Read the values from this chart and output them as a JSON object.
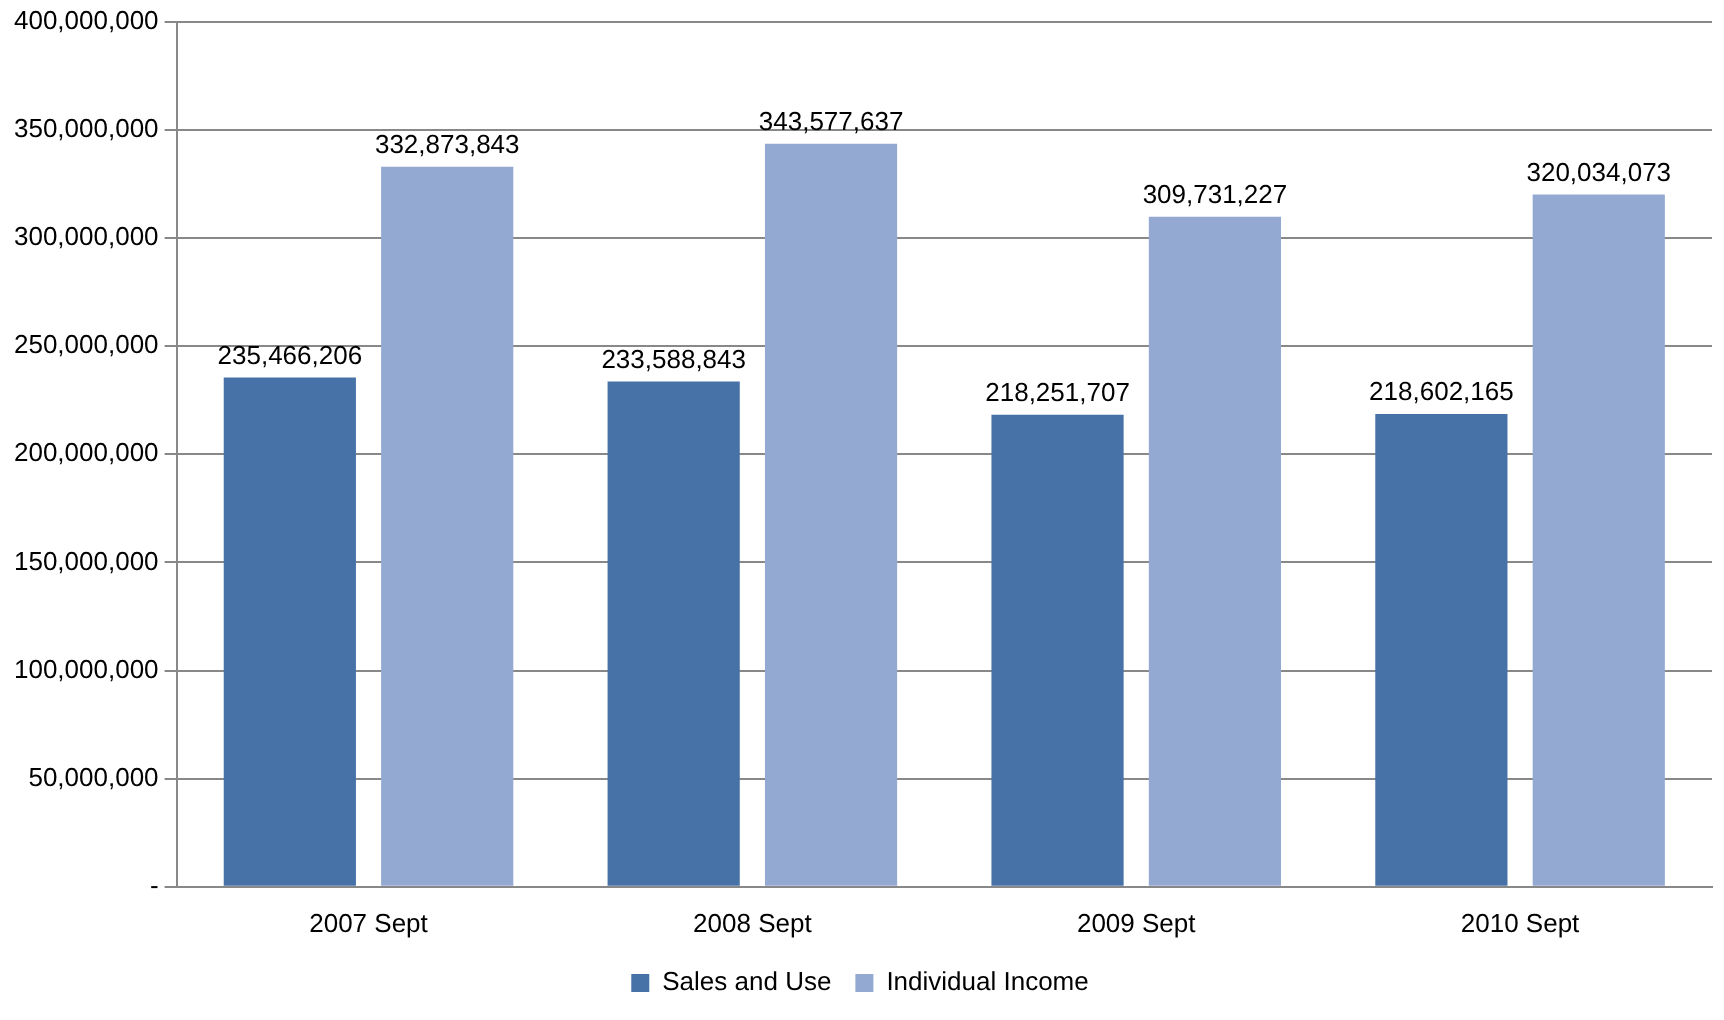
{
  "chart_data": {
    "type": "bar",
    "categories": [
      "2007 Sept",
      "2008 Sept",
      "2009 Sept",
      "2010 Sept"
    ],
    "series": [
      {
        "name": "Sales and Use",
        "color": "#4672a8",
        "values": [
          235466206,
          233588843,
          218251707,
          218602165
        ],
        "value_labels": [
          "235,466,206",
          "233,588,843",
          "218,251,707",
          "218,602,165"
        ]
      },
      {
        "name": "Individual Income",
        "color": "#94a9d2",
        "values": [
          332873843,
          343577637,
          309731227,
          320034073
        ],
        "value_labels": [
          "332,873,843",
          "343,577,637",
          "309,731,227",
          "320,034,073"
        ]
      }
    ],
    "ylim": [
      0,
      400000000
    ],
    "yticks": [
      {
        "value": 0,
        "label": "-"
      },
      {
        "value": 50000000,
        "label": "50,000,000"
      },
      {
        "value": 100000000,
        "label": "100,000,000"
      },
      {
        "value": 150000000,
        "label": "150,000,000"
      },
      {
        "value": 200000000,
        "label": "200,000,000"
      },
      {
        "value": 250000000,
        "label": "250,000,000"
      },
      {
        "value": 300000000,
        "label": "300,000,000"
      },
      {
        "value": 350000000,
        "label": "350,000,000"
      },
      {
        "value": 400000000,
        "label": "400,000,000"
      }
    ],
    "grid": "y",
    "legend": "bottom"
  }
}
